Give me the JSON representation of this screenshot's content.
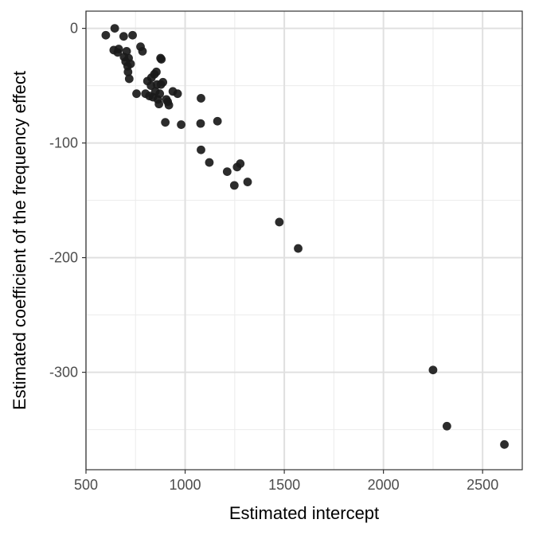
{
  "chart_data": {
    "type": "scatter",
    "xlabel": "Estimated intercept",
    "ylabel": "Estimated coefficient of the frequency effect",
    "xlim": [
      500,
      2700
    ],
    "ylim": [
      -385,
      15
    ],
    "x_ticks": [
      500,
      1000,
      1500,
      2000,
      2500
    ],
    "y_ticks": [
      0,
      -100,
      -200,
      -300
    ],
    "x_minor_ticks": [
      750,
      1250,
      1750,
      2250
    ],
    "y_minor_ticks": [
      -50,
      -150,
      -250,
      -350
    ],
    "grid": true,
    "legend": "none",
    "point_color": "#1a1a1a",
    "points": [
      {
        "x": 600,
        "y": -6
      },
      {
        "x": 645,
        "y": 0
      },
      {
        "x": 640,
        "y": -19
      },
      {
        "x": 660,
        "y": -21
      },
      {
        "x": 665,
        "y": -18
      },
      {
        "x": 690,
        "y": -7
      },
      {
        "x": 692,
        "y": -25
      },
      {
        "x": 700,
        "y": -29
      },
      {
        "x": 705,
        "y": -20
      },
      {
        "x": 710,
        "y": -33
      },
      {
        "x": 712,
        "y": -38
      },
      {
        "x": 715,
        "y": -26
      },
      {
        "x": 718,
        "y": -44
      },
      {
        "x": 725,
        "y": -31
      },
      {
        "x": 735,
        "y": -6
      },
      {
        "x": 755,
        "y": -57
      },
      {
        "x": 775,
        "y": -16
      },
      {
        "x": 785,
        "y": -20
      },
      {
        "x": 800,
        "y": -57
      },
      {
        "x": 810,
        "y": -46
      },
      {
        "x": 820,
        "y": -59
      },
      {
        "x": 828,
        "y": -50
      },
      {
        "x": 830,
        "y": -43
      },
      {
        "x": 838,
        "y": -60
      },
      {
        "x": 845,
        "y": -40
      },
      {
        "x": 850,
        "y": -55
      },
      {
        "x": 855,
        "y": -38
      },
      {
        "x": 858,
        "y": -49
      },
      {
        "x": 862,
        "y": -62
      },
      {
        "x": 868,
        "y": -66
      },
      {
        "x": 872,
        "y": -57
      },
      {
        "x": 878,
        "y": -49
      },
      {
        "x": 876,
        "y": -26
      },
      {
        "x": 880,
        "y": -27
      },
      {
        "x": 888,
        "y": -47
      },
      {
        "x": 900,
        "y": -82
      },
      {
        "x": 905,
        "y": -62
      },
      {
        "x": 912,
        "y": -64
      },
      {
        "x": 918,
        "y": -67
      },
      {
        "x": 938,
        "y": -55
      },
      {
        "x": 962,
        "y": -57
      },
      {
        "x": 980,
        "y": -84
      },
      {
        "x": 1080,
        "y": -61
      },
      {
        "x": 1078,
        "y": -83
      },
      {
        "x": 1080,
        "y": -106
      },
      {
        "x": 1122,
        "y": -117
      },
      {
        "x": 1163,
        "y": -81
      },
      {
        "x": 1212,
        "y": -125
      },
      {
        "x": 1248,
        "y": -137
      },
      {
        "x": 1262,
        "y": -121
      },
      {
        "x": 1278,
        "y": -118
      },
      {
        "x": 1315,
        "y": -134
      },
      {
        "x": 1475,
        "y": -169
      },
      {
        "x": 1570,
        "y": -192
      },
      {
        "x": 2250,
        "y": -298
      },
      {
        "x": 2320,
        "y": -347
      },
      {
        "x": 2610,
        "y": -363
      }
    ]
  }
}
